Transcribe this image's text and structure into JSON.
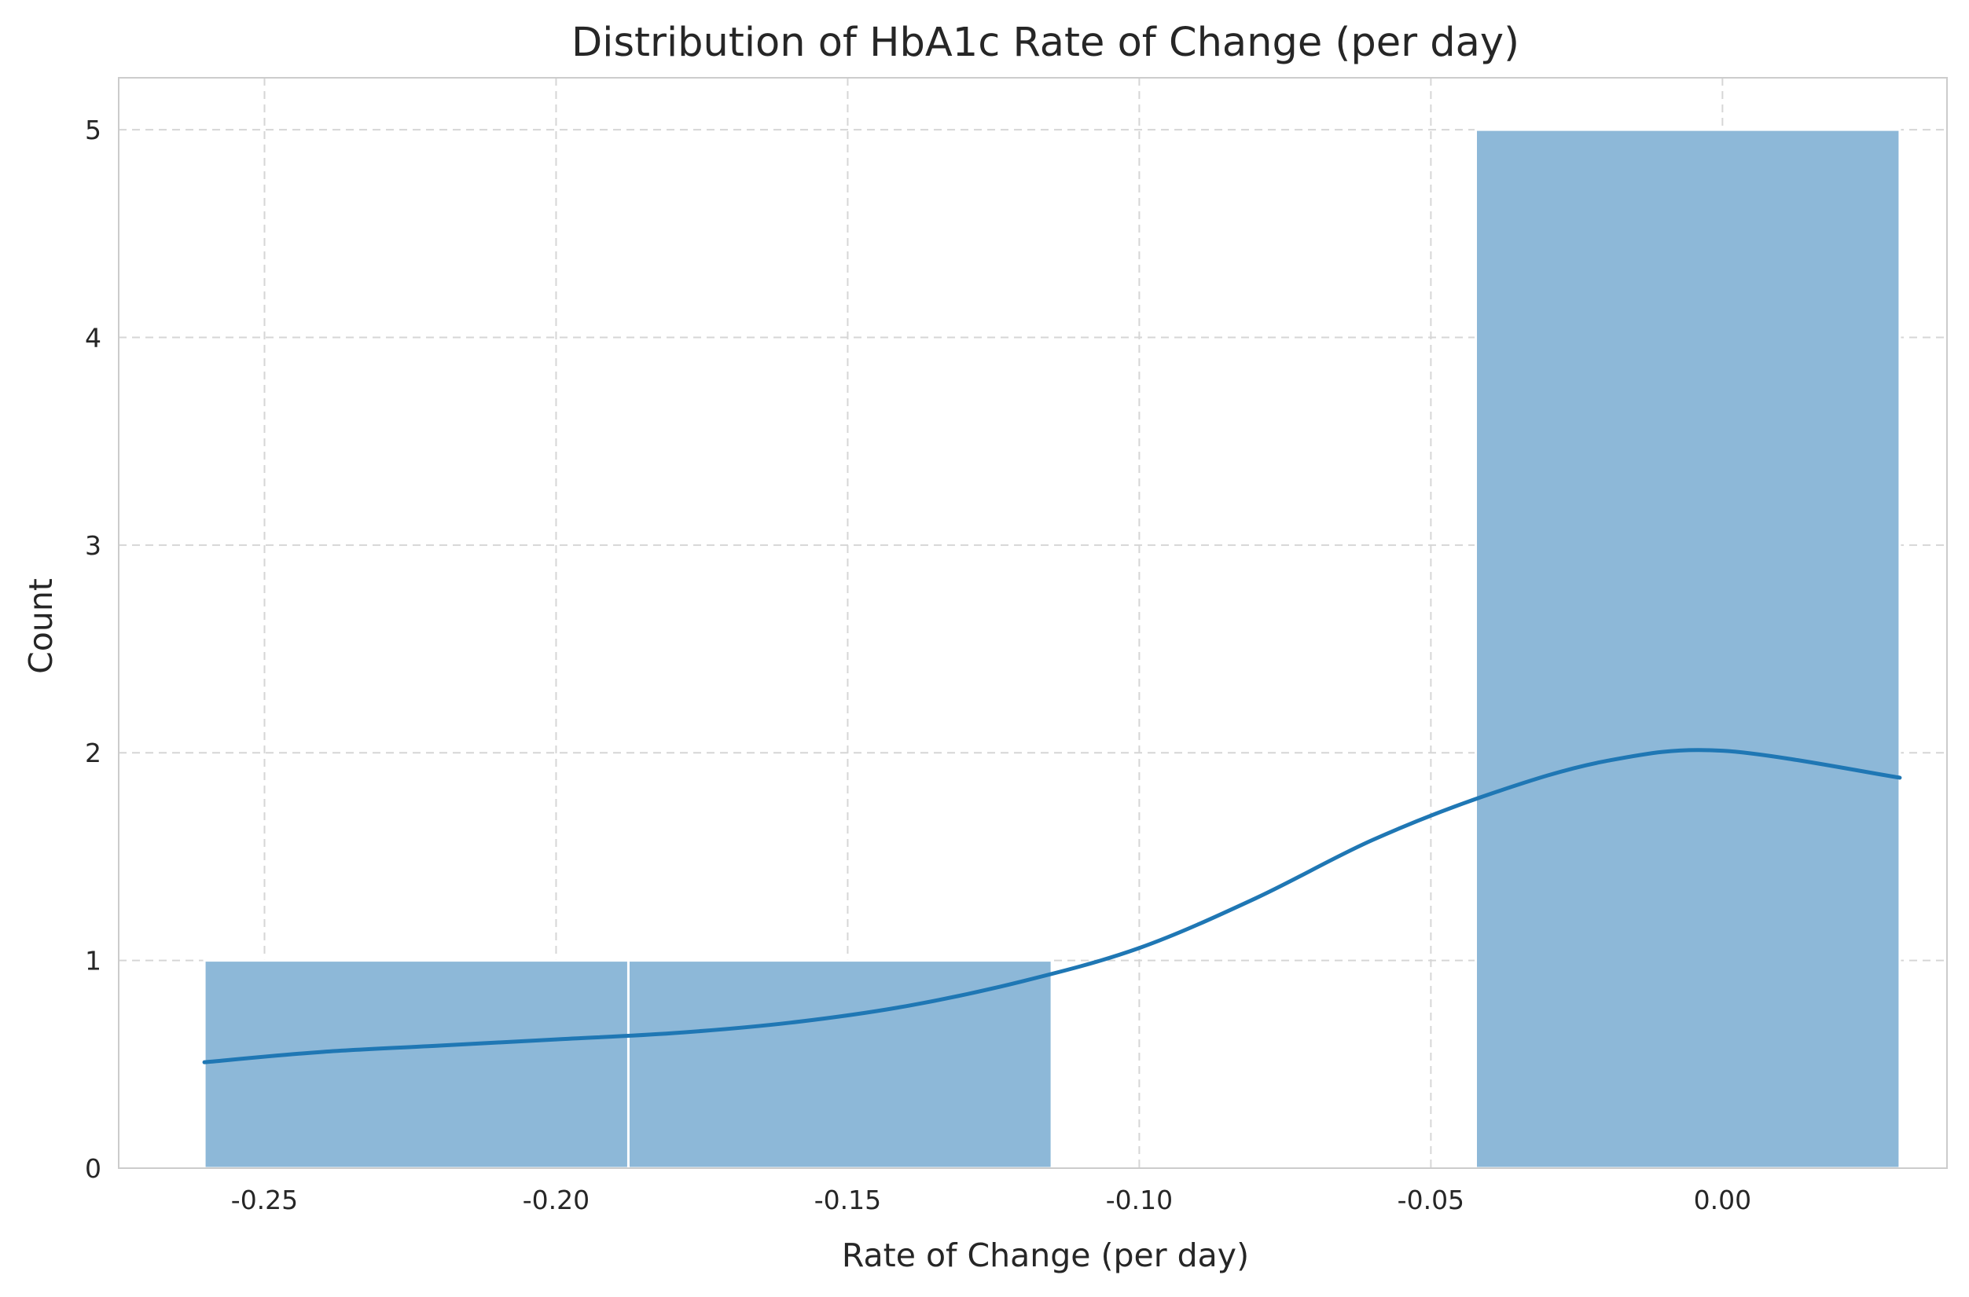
{
  "chart_data": {
    "type": "bar",
    "subtype": "histogram-with-kde",
    "title": "Distribution of HbA1c Rate of Change (per day)",
    "xlabel": "Rate of Change (per day)",
    "ylabel": "Count",
    "xlim": [
      -0.275,
      0.0385
    ],
    "ylim": [
      0,
      5.25
    ],
    "xticks": [
      -0.25,
      -0.2,
      -0.15,
      -0.1,
      -0.05,
      0.0
    ],
    "xtick_labels": [
      "-0.25",
      "-0.20",
      "-0.15",
      "-0.10",
      "-0.05",
      "0.00"
    ],
    "yticks": [
      0,
      1,
      2,
      3,
      4,
      5
    ],
    "ytick_labels": [
      "0",
      "1",
      "2",
      "3",
      "4",
      "5"
    ],
    "bins": [
      {
        "start": -0.2603,
        "end": -0.1876,
        "count": 1
      },
      {
        "start": -0.1876,
        "end": -0.115,
        "count": 1
      },
      {
        "start": -0.115,
        "end": -0.0423,
        "count": 0
      },
      {
        "start": -0.0423,
        "end": 0.0304,
        "count": 5
      }
    ],
    "kde": {
      "x": [
        -0.2603,
        -0.24,
        -0.22,
        -0.2,
        -0.18,
        -0.16,
        -0.14,
        -0.12,
        -0.1,
        -0.08,
        -0.06,
        -0.04,
        -0.02,
        0.0,
        0.0304
      ],
      "y": [
        0.51,
        0.56,
        0.59,
        0.62,
        0.65,
        0.7,
        0.78,
        0.9,
        1.06,
        1.3,
        1.58,
        1.8,
        1.96,
        2.01,
        1.88
      ]
    },
    "grid": true,
    "colors": {
      "bar": "#8db8d8",
      "kde": "#1f77b4",
      "grid": "#d6d6d6",
      "spine": "#cccccc"
    }
  }
}
